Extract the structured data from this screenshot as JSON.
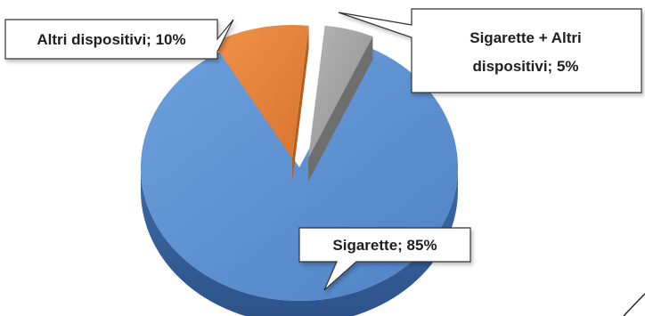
{
  "chart_data": {
    "type": "pie",
    "style": "3d-exploded",
    "slices": [
      {
        "label": "Sigarette",
        "value": 85,
        "color": "#5b8fd0"
      },
      {
        "label": "Altri dispositivi",
        "value": 10,
        "color": "#e0803a"
      },
      {
        "label": "Sigarette + Altri dispositivi",
        "value": 5,
        "color": "#9a9a9a"
      }
    ],
    "data_labels": {
      "cigarettes": "Sigarette; 85%",
      "other_devices": "Altri dispositivi; 10%",
      "cig_plus_other_line1": "Sigarette + Altri",
      "cig_plus_other_line2": "dispositivi; 5%"
    },
    "legend": "none"
  }
}
